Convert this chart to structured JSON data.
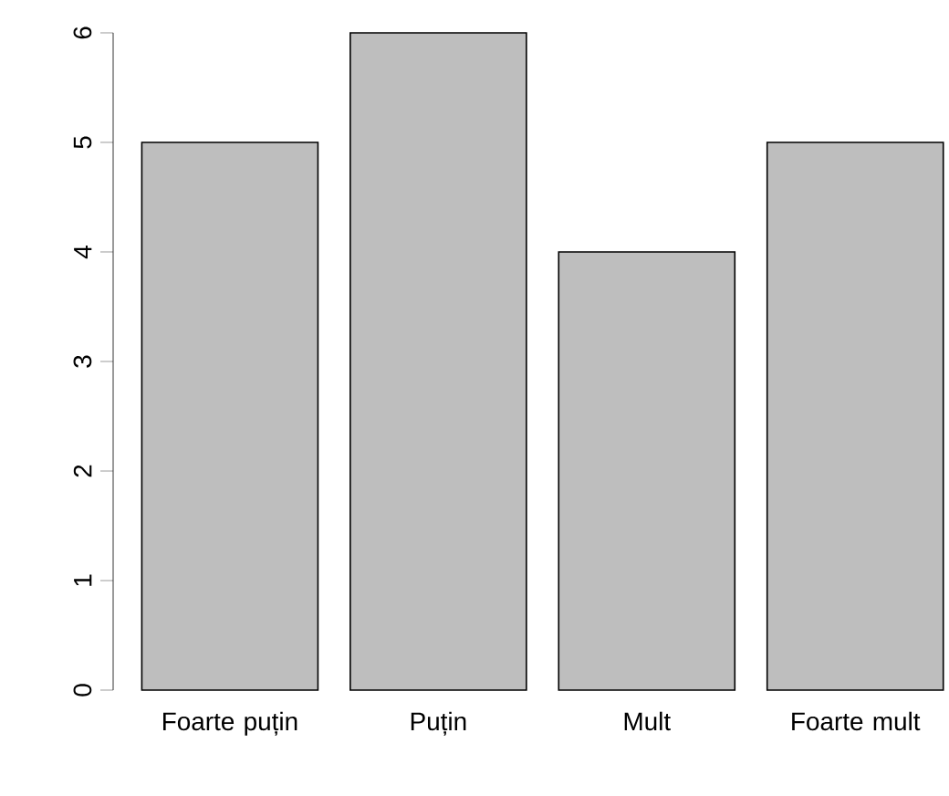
{
  "chart_data": {
    "type": "bar",
    "categories": [
      "Foarte puțin",
      "Puțin",
      "Mult",
      "Foarte mult"
    ],
    "values": [
      5,
      6,
      4,
      5
    ],
    "color": "#bebebe",
    "ylim": [
      0,
      6
    ],
    "yticks": [
      0,
      1,
      2,
      3,
      4,
      5,
      6
    ]
  }
}
